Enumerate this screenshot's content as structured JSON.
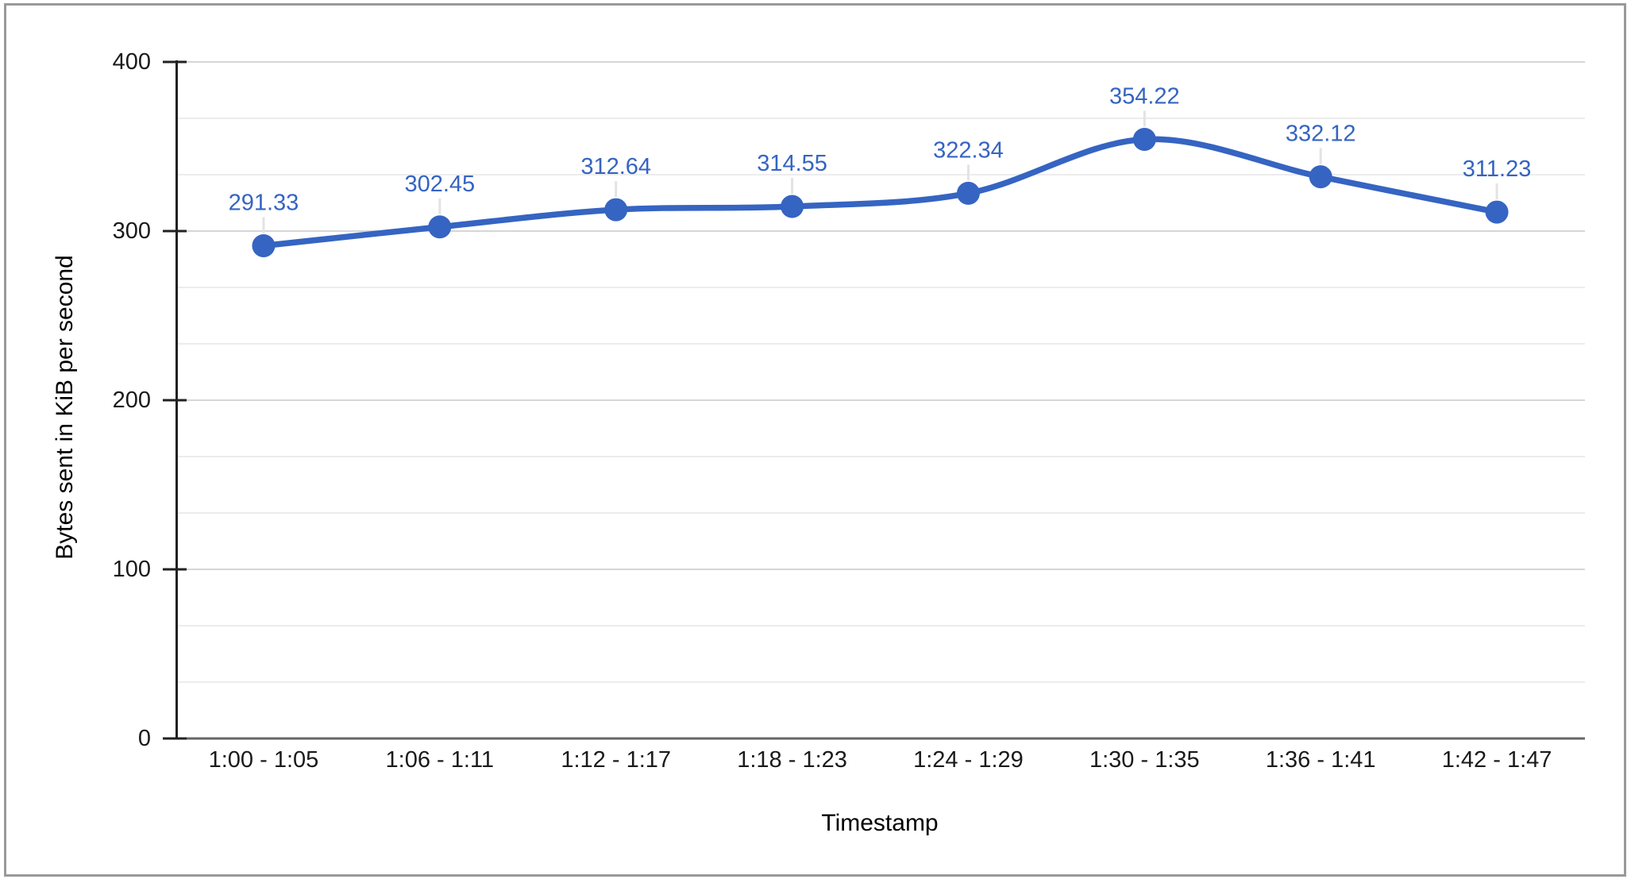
{
  "chart_data": {
    "type": "line",
    "title": "",
    "xlabel": "Timestamp",
    "ylabel": "Bytes sent in KiB per second",
    "categories": [
      "1:00 - 1:05",
      "1:06 - 1:11",
      "1:12 - 1:17",
      "1:18 - 1:23",
      "1:24 - 1:29",
      "1:30 - 1:35",
      "1:36 - 1:41",
      "1:42 - 1:47"
    ],
    "values": [
      291.33,
      302.45,
      312.64,
      314.55,
      322.34,
      354.22,
      332.12,
      311.23
    ],
    "data_labels": [
      "291.33",
      "302.45",
      "312.64",
      "314.55",
      "322.34",
      "354.22",
      "332.12",
      "311.23"
    ],
    "ylim": [
      0,
      400
    ],
    "yticks": [
      0,
      100,
      200,
      300,
      400
    ],
    "minor_divisions_per_major": 3,
    "grid": true,
    "legend": "none",
    "curve": "smooth",
    "point_markers": true,
    "colors": {
      "series": "#3564c2",
      "data_label": "#3564c2",
      "axis_line": "#212121",
      "baseline": "#666666",
      "tick_label": "#1a1a1a",
      "axis_title": "#000000",
      "major_gridline": "#d6d6d6",
      "minor_gridline": "#ececec",
      "annotation_stem": "#e3e3e3",
      "frame_border": "#999999",
      "background": "#ffffff"
    }
  }
}
